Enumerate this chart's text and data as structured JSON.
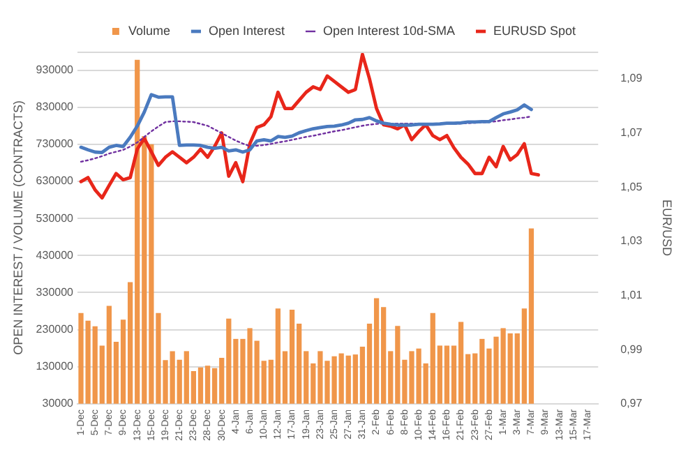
{
  "chart_data": {
    "type": "bar",
    "categories": [
      "1-Dec",
      null,
      "5-Dec",
      null,
      "7-Dec",
      null,
      "9-Dec",
      null,
      "13-Dec",
      null,
      "15-Dec",
      null,
      "19-Dec",
      null,
      "21-Dec",
      null,
      "23-Dec",
      null,
      "28-Dec",
      null,
      "30-Dec",
      null,
      "4-Jan",
      null,
      "6-Jan",
      null,
      "10-Jan",
      null,
      "12-Jan",
      null,
      "17-Jan",
      null,
      "19-Jan",
      null,
      "23-Jan",
      null,
      "25-Jan",
      null,
      "27-Jan",
      null,
      "31-Jan",
      null,
      "2-Feb",
      null,
      "6-Feb",
      null,
      "8-Feb",
      null,
      "10-Feb",
      null,
      "14-Feb",
      null,
      "16-Feb",
      null,
      "21-Feb",
      null,
      "23-Feb",
      null,
      "27-Feb",
      null,
      "1-Mar",
      null,
      "3-Mar",
      null,
      "7-Mar",
      null,
      "9-Mar",
      null,
      "13-Mar",
      null,
      "15-Mar",
      null,
      "17-Mar",
      null
    ],
    "series": [
      {
        "name": "Volume",
        "color": "#f0964a",
        "values": [
          275000,
          254000,
          239000,
          187000,
          294000,
          197000,
          257000,
          358000,
          958000,
          752000,
          730000,
          275000,
          148000,
          172000,
          149000,
          172000,
          118000,
          128000,
          133000,
          126000,
          154000,
          260000,
          205000,
          205000,
          234000,
          200000,
          146000,
          149000,
          287000,
          172000,
          284000,
          246000,
          172000,
          139000,
          172000,
          146000,
          158000,
          166000,
          160000,
          163000,
          184000,
          246000,
          315000,
          291000,
          172000,
          240000,
          149000,
          172000,
          179000,
          139000,
          275000,
          187000,
          187000,
          187000,
          251000,
          164000,
          166000,
          205000,
          179000,
          211000,
          234000,
          220000,
          220000,
          287000,
          503000,
          null,
          null,
          null,
          null,
          null,
          null,
          null,
          null,
          null
        ]
      },
      {
        "name": "Open Interest",
        "type": "line",
        "color": "#4a7abf",
        "line_style": "solid",
        "values": [
          722000,
          715000,
          709000,
          708000,
          722000,
          727000,
          724000,
          749000,
          779000,
          817000,
          864000,
          857000,
          858000,
          858000,
          727000,
          728000,
          728000,
          727000,
          722000,
          719000,
          722000,
          712000,
          715000,
          709000,
          715000,
          739000,
          742000,
          739000,
          751000,
          749000,
          752000,
          761000,
          767000,
          772000,
          775000,
          778000,
          779000,
          782000,
          787000,
          796000,
          797000,
          802000,
          793000,
          787000,
          784000,
          782000,
          782000,
          782000,
          784000,
          784000,
          784000,
          785000,
          787000,
          787000,
          788000,
          790000,
          790000,
          791000,
          791000,
          802000,
          812000,
          817000,
          823000,
          836000,
          824000,
          null,
          null,
          null,
          null,
          null,
          null,
          null,
          null,
          null
        ]
      },
      {
        "name": "Open Interest 10d-SMA",
        "type": "line",
        "color": "#7030a0",
        "line_style": "dotted",
        "values": [
          683000,
          687000,
          692000,
          698000,
          705000,
          710000,
          715000,
          724000,
          735000,
          750000,
          765000,
          778000,
          790000,
          792000,
          792000,
          791000,
          790000,
          785000,
          780000,
          770000,
          760000,
          750000,
          740000,
          732000,
          725000,
          726000,
          728000,
          731000,
          735000,
          738000,
          742000,
          746000,
          750000,
          753000,
          757000,
          761000,
          765000,
          768000,
          772000,
          776000,
          780000,
          783000,
          785000,
          786000,
          786000,
          786000,
          786000,
          786000,
          786000,
          785000,
          785000,
          785000,
          785000,
          785000,
          786000,
          787000,
          788000,
          789000,
          790000,
          792000,
          795000,
          797000,
          800000,
          802000,
          805000,
          null,
          null,
          null,
          null,
          null,
          null,
          null,
          null,
          null
        ]
      },
      {
        "name": "EURUSD Spot",
        "type": "line",
        "axis": "y2",
        "color": "#e8261a",
        "line_style": "solid",
        "values": [
          1.052,
          1.0535,
          1.049,
          1.046,
          1.0506,
          1.055,
          1.0527,
          1.0535,
          1.064,
          1.068,
          1.063,
          1.058,
          1.061,
          1.063,
          1.061,
          1.059,
          1.061,
          1.064,
          1.061,
          1.065,
          1.07,
          1.054,
          1.059,
          1.052,
          1.066,
          1.072,
          1.073,
          1.076,
          1.085,
          1.079,
          1.079,
          1.082,
          1.085,
          1.087,
          1.086,
          1.091,
          1.089,
          1.087,
          1.085,
          1.086,
          1.099,
          1.09,
          1.079,
          1.073,
          1.0725,
          1.0715,
          1.073,
          1.0675,
          1.0705,
          1.073,
          1.069,
          1.0675,
          1.069,
          1.0645,
          1.061,
          1.0585,
          1.055,
          1.055,
          1.061,
          1.0575,
          1.065,
          1.06,
          1.062,
          1.066,
          1.055,
          1.0545,
          null,
          null,
          null,
          null,
          null,
          null,
          null,
          null
        ]
      }
    ],
    "ylabel": "OPEN INTEREST / VOLUME (CONTRACTS)",
    "y2label": "EUR/USD",
    "ylim": [
      30000,
      980000
    ],
    "yticks": [
      30000,
      130000,
      230000,
      330000,
      430000,
      530000,
      630000,
      730000,
      830000,
      930000
    ],
    "y2lim": [
      0.97,
      1.1
    ],
    "y2ticks": [
      {
        "value": 0.97,
        "label": "0,97"
      },
      {
        "value": 0.99,
        "label": "0,99"
      },
      {
        "value": 1.01,
        "label": "1,01"
      },
      {
        "value": 1.03,
        "label": "1,03"
      },
      {
        "value": 1.05,
        "label": "1,05"
      },
      {
        "value": 1.07,
        "label": "1,07"
      },
      {
        "value": 1.09,
        "label": "1,09"
      }
    ],
    "grid": "y",
    "legend": "top",
    "marker": "none"
  }
}
